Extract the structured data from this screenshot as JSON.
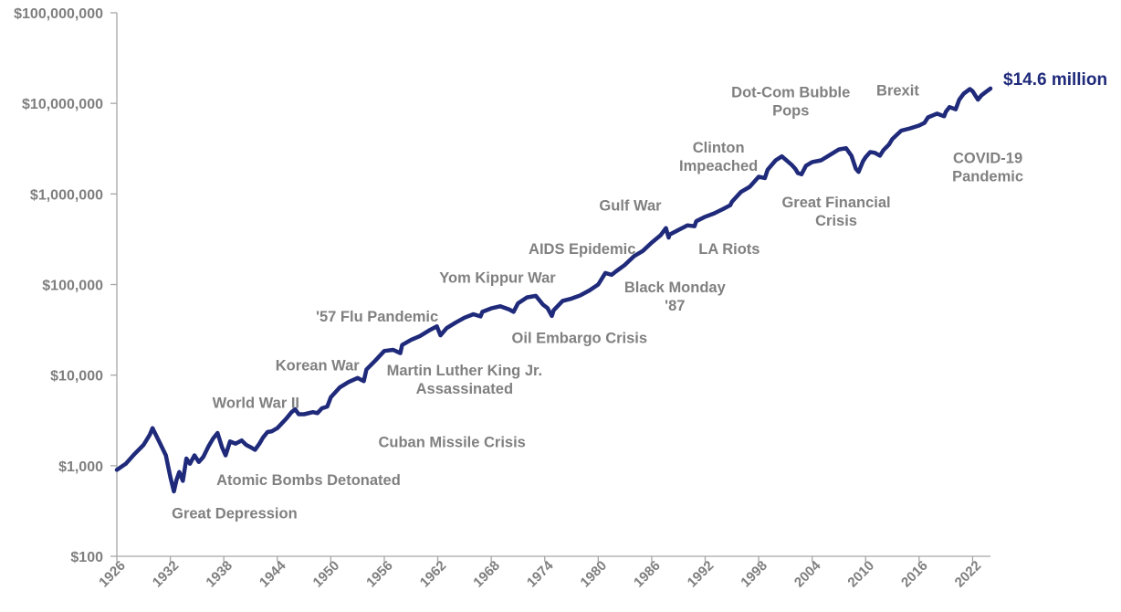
{
  "chart_data": {
    "type": "line",
    "title": "",
    "xlabel": "",
    "ylabel": "",
    "y_scale": "log",
    "ylim": [
      100,
      100000000
    ],
    "xlim": [
      1926,
      2024
    ],
    "grid": false,
    "line_color": "#1f2a7a",
    "y_ticks": [
      {
        "value": 100000000,
        "label": "$100,000,000"
      },
      {
        "value": 10000000,
        "label": "$10,000,000"
      },
      {
        "value": 1000000,
        "label": "$1,000,000"
      },
      {
        "value": 100000,
        "label": "$100,000"
      },
      {
        "value": 10000,
        "label": "$10,000"
      },
      {
        "value": 1000,
        "label": "$1,000"
      },
      {
        "value": 100,
        "label": "$100"
      }
    ],
    "x_ticks": [
      "1926",
      "1932",
      "1938",
      "1944",
      "1950",
      "1956",
      "1962",
      "1968",
      "1974",
      "1980",
      "1986",
      "1992",
      "1998",
      "2004",
      "2010",
      "2016",
      "2022"
    ],
    "series": [
      {
        "x": [
          1926,
          1927,
          1928,
          1929,
          1929.7,
          1930,
          1930.8,
          1931.5,
          1932,
          1932.4,
          1932.7,
          1933,
          1933.4,
          1933.8,
          1934.2,
          1934.7,
          1935.2,
          1935.7,
          1936.3,
          1936.8,
          1937.3,
          1937.8,
          1938.2,
          1938.7,
          1939.3,
          1940,
          1940.5,
          1941,
          1941.5,
          1942,
          1942.4,
          1942.9,
          1943.4,
          1944,
          1945,
          1945.6,
          1946,
          1946.4,
          1947,
          1948,
          1948.5,
          1949,
          1949.6,
          1950,
          1951,
          1952,
          1953,
          1953.7,
          1954,
          1955,
          1956,
          1957,
          1957.8,
          1958,
          1959,
          1960,
          1961,
          1961.9,
          1962.3,
          1963,
          1964,
          1965,
          1966,
          1966.8,
          1967,
          1968,
          1969,
          1970,
          1970.5,
          1971,
          1972,
          1973,
          1973.8,
          1974.3,
          1974.8,
          1975,
          1976,
          1977,
          1978,
          1979,
          1980,
          1980.8,
          1981.5,
          1982,
          1983,
          1984,
          1985,
          1986,
          1987,
          1987.6,
          1987.9,
          1988,
          1989,
          1990,
          1990.8,
          1991,
          1992,
          1993,
          1994,
          1994.8,
          1995,
          1996,
          1997,
          1998,
          1998.7,
          1999,
          1999.9,
          2000.6,
          2001,
          2001.7,
          2002.1,
          2002.4,
          2002.8,
          2003.3,
          2004,
          2005,
          2006,
          2007,
          2007.8,
          2008.4,
          2008.9,
          2009.2,
          2009.7,
          2010,
          2010.5,
          2011,
          2011.6,
          2012,
          2012.6,
          2013,
          2014,
          2015,
          2016,
          2016.6,
          2017,
          2018,
          2018.8,
          2019,
          2019.4,
          2020.1,
          2020.5,
          2021,
          2021.7,
          2022,
          2022.6,
          2023,
          2023.5,
          2024
        ],
        "values": [
          900,
          1050,
          1350,
          1700,
          2200,
          2600,
          1800,
          1300,
          750,
          520,
          700,
          850,
          680,
          1200,
          1050,
          1300,
          1100,
          1250,
          1650,
          2000,
          2300,
          1600,
          1300,
          1850,
          1750,
          1900,
          1700,
          1600,
          1500,
          1750,
          2050,
          2350,
          2400,
          2600,
          3300,
          3900,
          4200,
          3700,
          3700,
          3900,
          3800,
          4300,
          4500,
          5700,
          7300,
          8400,
          9300,
          8600,
          11500,
          14500,
          18500,
          19000,
          17500,
          21500,
          24500,
          27000,
          31000,
          34500,
          27500,
          33000,
          38000,
          43000,
          47000,
          44500,
          50000,
          54500,
          57500,
          53000,
          50000,
          62000,
          72000,
          75000,
          60000,
          55000,
          45000,
          52000,
          66000,
          70000,
          76000,
          86000,
          100000,
          134000,
          128000,
          140000,
          165000,
          205000,
          235000,
          290000,
          350000,
          420000,
          330000,
          355000,
          400000,
          450000,
          440000,
          500000,
          560000,
          610000,
          680000,
          750000,
          820000,
          1050000,
          1200000,
          1550000,
          1500000,
          1850000,
          2350000,
          2600000,
          2400000,
          2100000,
          1900000,
          1700000,
          1650000,
          2050000,
          2250000,
          2350000,
          2700000,
          3100000,
          3200000,
          2650000,
          1900000,
          1750000,
          2300000,
          2550000,
          2900000,
          2850000,
          2650000,
          3050000,
          3500000,
          4050000,
          5000000,
          5300000,
          5700000,
          6100000,
          7000000,
          7700000,
          7200000,
          8100000,
          9100000,
          8600000,
          11000000,
          12800000,
          14400000,
          13600000,
          11000000,
          12300000,
          13400000,
          14600000
        ]
      }
    ],
    "end_label": {
      "x": 2024,
      "y": 14600000,
      "text": "$14.6 million"
    },
    "annotations": [
      {
        "lines": [
          "Great Depression"
        ],
        "x": 1939.2,
        "y": 300
      },
      {
        "lines": [
          "Atomic Bombs Detonated"
        ],
        "x": 1947.5,
        "y": 700
      },
      {
        "lines": [
          "World War II"
        ],
        "x": 1941.6,
        "y": 5000
      },
      {
        "lines": [
          "Cuban Missile Crisis"
        ],
        "x": 1963.6,
        "y": 1850
      },
      {
        "lines": [
          "Korean War"
        ],
        "x": 1948.5,
        "y": 13000
      },
      {
        "lines": [
          "Martin Luther King Jr.",
          "Assassinated"
        ],
        "x": 1965.0,
        "y": 9000
      },
      {
        "lines": [
          "'57 Flu Pandemic"
        ],
        "x": 1955.2,
        "y": 45000
      },
      {
        "lines": [
          "Yom Kippur War"
        ],
        "x": 1968.7,
        "y": 120000
      },
      {
        "lines": [
          "Oil Embargo Crisis"
        ],
        "x": 1977.9,
        "y": 26000
      },
      {
        "lines": [
          "AIDS Epidemic"
        ],
        "x": 1978.2,
        "y": 250000
      },
      {
        "lines": [
          "Black Monday",
          "'87"
        ],
        "x": 1988.6,
        "y": 75000
      },
      {
        "lines": [
          "Gulf War"
        ],
        "x": 1983.6,
        "y": 750000
      },
      {
        "lines": [
          "LA Riots"
        ],
        "x": 1994.7,
        "y": 250000
      },
      {
        "lines": [
          "Clinton",
          "Impeached"
        ],
        "x": 1993.5,
        "y": 2600000
      },
      {
        "lines": [
          "Dot-Com Bubble",
          "Pops"
        ],
        "x": 2001.6,
        "y": 10700000
      },
      {
        "lines": [
          "Great Financial",
          "Crisis"
        ],
        "x": 2006.7,
        "y": 650000
      },
      {
        "lines": [
          "Brexit"
        ],
        "x": 2013.6,
        "y": 14000000
      },
      {
        "lines": [
          "COVID-19",
          "Pandemic"
        ],
        "x": 2023.7,
        "y": 2000000
      }
    ]
  }
}
